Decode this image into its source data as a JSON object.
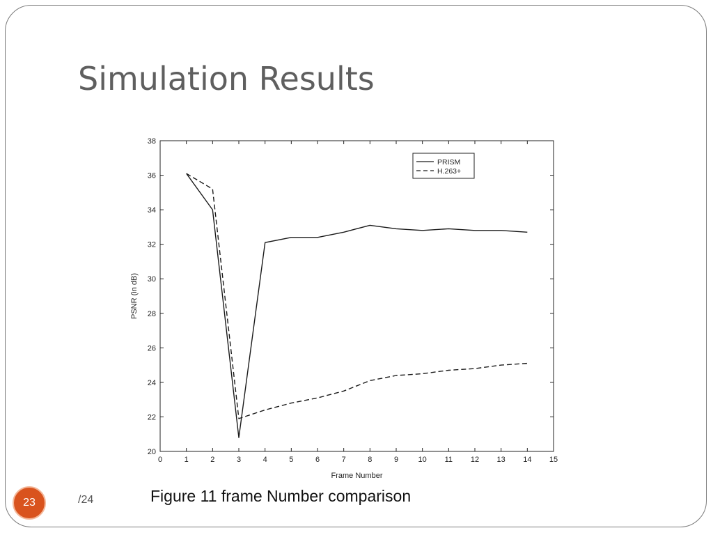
{
  "slide": {
    "title": "Simulation Results",
    "caption": "Figure 11 frame Number comparison",
    "page_number": "23",
    "page_total": "/24",
    "badge_color": "#d9531e"
  },
  "chart_data": {
    "type": "line",
    "xlabel": "Frame Number",
    "ylabel": "PSNR (in dB)",
    "xlim": [
      0,
      15
    ],
    "ylim": [
      20,
      38
    ],
    "xticks": [
      0,
      1,
      2,
      3,
      4,
      5,
      6,
      7,
      8,
      9,
      10,
      11,
      12,
      13,
      14,
      15
    ],
    "yticks": [
      20,
      22,
      24,
      26,
      28,
      30,
      32,
      34,
      36,
      38
    ],
    "grid": false,
    "legend": "top-right",
    "x": [
      1,
      2,
      3,
      4,
      5,
      6,
      7,
      8,
      9,
      10,
      11,
      12,
      13,
      14
    ],
    "series": [
      {
        "name": "PRISM",
        "style": "solid",
        "values": [
          36.1,
          34.0,
          20.8,
          32.1,
          32.4,
          32.4,
          32.7,
          33.1,
          32.9,
          32.8,
          32.9,
          32.8,
          32.8,
          32.7
        ]
      },
      {
        "name": "H.263+",
        "style": "dashed",
        "values": [
          36.1,
          35.2,
          21.9,
          22.4,
          22.8,
          23.1,
          23.5,
          24.1,
          24.4,
          24.5,
          24.7,
          24.8,
          25.0,
          25.1
        ]
      }
    ]
  }
}
